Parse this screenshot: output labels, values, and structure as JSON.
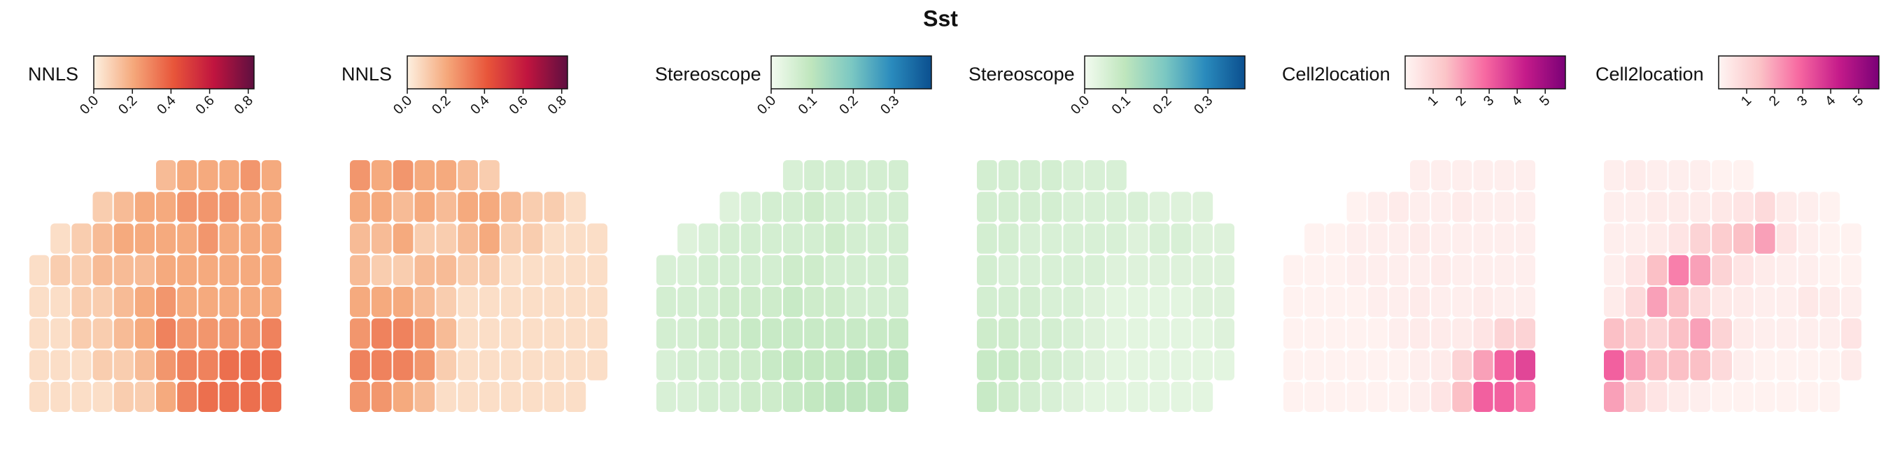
{
  "title": "Sst",
  "chart_data": [
    {
      "type": "heatmap",
      "colorbar_label": "NNLS",
      "clim": [
        0,
        0.83
      ],
      "cticks": [
        {
          "value": 0,
          "label": "0.0"
        },
        0.2,
        0.4,
        0.6,
        0.8
      ],
      "colormap": [
        "#fdf0e0",
        "#f5a77a",
        "#e8553a",
        "#c0143f",
        "#5e0f40"
      ],
      "values": [
        [
          null,
          null,
          null,
          null,
          null,
          null,
          0.15,
          0.2,
          0.2,
          0.2,
          0.25,
          0.2
        ],
        [
          null,
          null,
          null,
          0.1,
          0.15,
          0.2,
          0.2,
          0.25,
          0.25,
          0.25,
          0.2,
          0.2
        ],
        [
          null,
          0.05,
          0.1,
          0.15,
          0.2,
          0.2,
          0.2,
          0.2,
          0.25,
          0.2,
          0.2,
          0.2
        ],
        [
          0.05,
          0.1,
          0.1,
          0.15,
          0.15,
          0.15,
          0.2,
          0.2,
          0.2,
          0.2,
          0.2,
          0.2
        ],
        [
          0.05,
          0.05,
          0.1,
          0.1,
          0.15,
          0.2,
          0.25,
          0.2,
          0.2,
          0.2,
          0.2,
          0.2
        ],
        [
          0.05,
          0.05,
          0.1,
          0.1,
          0.15,
          0.2,
          0.3,
          0.25,
          0.25,
          0.25,
          0.25,
          0.3
        ],
        [
          0.05,
          0.05,
          0.05,
          0.1,
          0.1,
          0.15,
          0.25,
          0.3,
          0.3,
          0.35,
          0.35,
          0.35
        ],
        [
          0.05,
          0.05,
          0.05,
          0.05,
          0.1,
          0.1,
          0.2,
          0.3,
          0.35,
          0.35,
          0.35,
          0.35
        ]
      ]
    },
    {
      "type": "heatmap",
      "colorbar_label": "NNLS",
      "clim": [
        0,
        0.83
      ],
      "cticks": [
        {
          "value": 0,
          "label": "0.0"
        },
        0.2,
        0.4,
        0.6,
        0.8
      ],
      "colormap": [
        "#fdf0e0",
        "#f5a77a",
        "#e8553a",
        "#c0143f",
        "#5e0f40"
      ],
      "values": [
        [
          0.25,
          0.2,
          0.25,
          0.2,
          0.2,
          0.15,
          0.1,
          null,
          null,
          null,
          null,
          null
        ],
        [
          0.2,
          0.2,
          0.15,
          0.2,
          0.15,
          0.2,
          0.2,
          0.15,
          0.1,
          0.1,
          0.05,
          null
        ],
        [
          0.15,
          0.15,
          0.2,
          0.1,
          0.1,
          0.15,
          0.2,
          0.1,
          0.1,
          0.05,
          0.05,
          0.05
        ],
        [
          0.15,
          0.1,
          0.1,
          0.15,
          0.15,
          0.1,
          0.1,
          0.05,
          0.05,
          0.05,
          0.05,
          0.05
        ],
        [
          0.2,
          0.2,
          0.2,
          0.15,
          0.1,
          0.05,
          0.05,
          0.05,
          0.05,
          0.05,
          0.05,
          0.05
        ],
        [
          0.25,
          0.3,
          0.3,
          0.25,
          0.15,
          0.05,
          0.05,
          0.05,
          0.05,
          0.05,
          0.05,
          0.05
        ],
        [
          0.3,
          0.3,
          0.3,
          0.25,
          0.1,
          0.05,
          0.05,
          0.05,
          0.05,
          0.05,
          0.05,
          0.05
        ],
        [
          0.25,
          0.25,
          0.2,
          0.15,
          0.05,
          0.05,
          0.05,
          0.05,
          0.05,
          0.05,
          0.05,
          null
        ]
      ]
    },
    {
      "type": "heatmap",
      "colorbar_label": "Stereoscope",
      "clim": [
        0,
        0.39
      ],
      "cticks": [
        {
          "value": 0,
          "label": "0.0"
        },
        0.1,
        0.2,
        0.3
      ],
      "colormap": [
        "#f3fbf0",
        "#bfe6bd",
        "#7cc8c2",
        "#2a8bbd",
        "#0b4f8f"
      ],
      "values": [
        [
          null,
          null,
          null,
          null,
          null,
          null,
          0.05,
          0.06,
          0.06,
          0.06,
          0.06,
          0.06
        ],
        [
          null,
          null,
          null,
          0.04,
          0.05,
          0.06,
          0.06,
          0.07,
          0.06,
          0.06,
          0.06,
          0.06
        ],
        [
          null,
          0.04,
          0.05,
          0.06,
          0.06,
          0.06,
          0.06,
          0.06,
          0.07,
          0.06,
          0.06,
          0.06
        ],
        [
          0.05,
          0.05,
          0.06,
          0.06,
          0.06,
          0.06,
          0.07,
          0.07,
          0.06,
          0.06,
          0.06,
          0.06
        ],
        [
          0.06,
          0.06,
          0.06,
          0.07,
          0.07,
          0.07,
          0.08,
          0.07,
          0.07,
          0.06,
          0.06,
          0.06
        ],
        [
          0.06,
          0.06,
          0.07,
          0.07,
          0.08,
          0.08,
          0.08,
          0.08,
          0.08,
          0.08,
          0.08,
          0.08
        ],
        [
          0.05,
          0.06,
          0.06,
          0.07,
          0.07,
          0.08,
          0.09,
          0.09,
          0.09,
          0.1,
          0.1,
          0.1
        ],
        [
          0.05,
          0.05,
          0.06,
          0.06,
          0.07,
          0.07,
          0.08,
          0.09,
          0.1,
          0.1,
          0.1,
          0.1
        ]
      ]
    },
    {
      "type": "heatmap",
      "colorbar_label": "Stereoscope",
      "clim": [
        0,
        0.39
      ],
      "cticks": [
        {
          "value": 0,
          "label": "0.0"
        },
        0.1,
        0.2,
        0.3
      ],
      "colormap": [
        "#f3fbf0",
        "#bfe6bd",
        "#7cc8c2",
        "#2a8bbd",
        "#0b4f8f"
      ],
      "values": [
        [
          0.06,
          0.06,
          0.06,
          0.06,
          0.05,
          0.05,
          0.05,
          null,
          null,
          null,
          null,
          null
        ],
        [
          0.06,
          0.06,
          0.06,
          0.06,
          0.05,
          0.05,
          0.05,
          0.05,
          0.04,
          0.04,
          0.04,
          null
        ],
        [
          0.06,
          0.06,
          0.05,
          0.05,
          0.05,
          0.05,
          0.05,
          0.04,
          0.05,
          0.05,
          0.04,
          0.04
        ],
        [
          0.06,
          0.05,
          0.05,
          0.05,
          0.05,
          0.05,
          0.04,
          0.04,
          0.04,
          0.04,
          0.04,
          0.04
        ],
        [
          0.06,
          0.06,
          0.06,
          0.05,
          0.05,
          0.04,
          0.03,
          0.03,
          0.03,
          0.03,
          0.04,
          0.04
        ],
        [
          0.07,
          0.07,
          0.06,
          0.06,
          0.05,
          0.04,
          0.03,
          0.03,
          0.03,
          0.03,
          0.03,
          0.04
        ],
        [
          0.08,
          0.08,
          0.07,
          0.06,
          0.05,
          0.04,
          0.03,
          0.03,
          0.03,
          0.03,
          0.03,
          0.03
        ],
        [
          0.08,
          0.07,
          0.06,
          0.05,
          0.04,
          0.03,
          0.03,
          0.03,
          0.03,
          0.03,
          0.03,
          null
        ]
      ]
    },
    {
      "type": "heatmap",
      "colorbar_label": "Cell2location",
      "clim": [
        0,
        5.72
      ],
      "cticks": [
        1,
        2,
        3,
        4,
        5
      ],
      "colormap": [
        "#fff5f3",
        "#fbc5c8",
        "#f768a1",
        "#c51b8a",
        "#7a0177"
      ],
      "values": [
        [
          null,
          null,
          null,
          null,
          null,
          null,
          0.2,
          0.2,
          0.2,
          0.2,
          0.2,
          0.2
        ],
        [
          null,
          null,
          null,
          0.1,
          0.2,
          0.3,
          0.2,
          0.2,
          0.3,
          0.2,
          0.2,
          0.2
        ],
        [
          null,
          0.1,
          0.1,
          0.2,
          0.2,
          0.2,
          0.3,
          0.2,
          0.2,
          0.2,
          0.2,
          0.2
        ],
        [
          0.1,
          0.1,
          0.1,
          0.2,
          0.2,
          0.2,
          0.2,
          0.3,
          0.2,
          0.2,
          0.2,
          0.2
        ],
        [
          0.1,
          0.1,
          0.1,
          0.1,
          0.2,
          0.2,
          0.3,
          0.2,
          0.2,
          0.3,
          0.2,
          0.2
        ],
        [
          0.1,
          0.1,
          0.1,
          0.1,
          0.1,
          0.2,
          0.3,
          0.3,
          0.3,
          0.5,
          1,
          1
        ],
        [
          0.1,
          0.1,
          0.1,
          0.1,
          0.1,
          0.1,
          0.2,
          0.3,
          1,
          2,
          3,
          3.5
        ],
        [
          0.1,
          0.1,
          0.1,
          0.1,
          0.1,
          0.1,
          0.2,
          0.5,
          1.5,
          3,
          3,
          2.5
        ]
      ]
    },
    {
      "type": "heatmap",
      "colorbar_label": "Cell2location",
      "clim": [
        0,
        5.72
      ],
      "cticks": [
        1,
        2,
        3,
        4,
        5
      ],
      "colormap": [
        "#fff5f3",
        "#fbc5c8",
        "#f768a1",
        "#c51b8a",
        "#7a0177"
      ],
      "values": [
        [
          0.2,
          0.3,
          0.2,
          0.2,
          0.2,
          0.1,
          0.1,
          null,
          null,
          null,
          null,
          null
        ],
        [
          0.2,
          0.2,
          0.3,
          0.3,
          0.3,
          0.4,
          0.5,
          0.8,
          0.3,
          0.2,
          0.1,
          null
        ],
        [
          0.2,
          0.2,
          0.3,
          0.5,
          1,
          1.2,
          1.5,
          2,
          0.5,
          0.2,
          0.1,
          0.1
        ],
        [
          0.2,
          0.5,
          1.5,
          2.5,
          2,
          1,
          0.5,
          0.3,
          0.2,
          0.2,
          0.1,
          0.1
        ],
        [
          0.3,
          0.8,
          2,
          1.5,
          0.8,
          0.4,
          0.3,
          0.2,
          0.2,
          0.4,
          0.3,
          0.2
        ],
        [
          1.5,
          1.2,
          1,
          1.5,
          2,
          1,
          0.3,
          0.2,
          0.2,
          0.2,
          0.2,
          0.5
        ],
        [
          3,
          2,
          1.5,
          1.5,
          1.5,
          0.8,
          0.2,
          0.1,
          0.1,
          0.1,
          0.1,
          0.3
        ],
        [
          2,
          1,
          0.5,
          0.3,
          0.2,
          0.1,
          0.1,
          0.1,
          0.1,
          0.1,
          0.1,
          null
        ]
      ]
    }
  ]
}
